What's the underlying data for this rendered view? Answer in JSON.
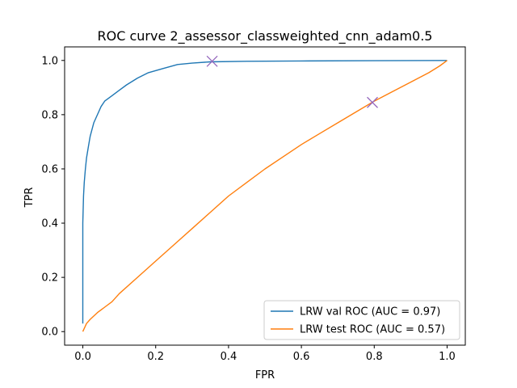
{
  "chart_data": {
    "type": "line",
    "title": "ROC curve 2_assessor_classweighted_cnn_adam0.5",
    "xlabel": "FPR",
    "ylabel": "TPR",
    "xlim": [
      -0.05,
      1.05
    ],
    "ylim": [
      -0.05,
      1.05
    ],
    "x_ticks": [
      "0.0",
      "0.2",
      "0.4",
      "0.6",
      "0.8",
      "1.0"
    ],
    "y_ticks": [
      "0.0",
      "0.2",
      "0.4",
      "0.6",
      "0.8",
      "1.0"
    ],
    "grid": false,
    "legend_position": "lower right",
    "series": [
      {
        "name": "LRW val ROC (AUC = 0.97)",
        "color": "#1f77b4",
        "x": [
          0.0,
          0.0,
          0.002,
          0.004,
          0.007,
          0.01,
          0.015,
          0.02,
          0.03,
          0.04,
          0.05,
          0.06,
          0.08,
          0.1,
          0.12,
          0.15,
          0.18,
          0.22,
          0.26,
          0.3,
          0.35,
          0.45,
          0.6,
          0.8,
          1.0
        ],
        "y": [
          0.03,
          0.4,
          0.5,
          0.55,
          0.6,
          0.64,
          0.68,
          0.72,
          0.77,
          0.8,
          0.83,
          0.85,
          0.87,
          0.89,
          0.91,
          0.935,
          0.955,
          0.97,
          0.985,
          0.99,
          0.995,
          0.997,
          0.998,
          0.999,
          1.0
        ]
      },
      {
        "name": "LRW test ROC (AUC = 0.57)",
        "color": "#ff7f0e",
        "x": [
          0.0,
          0.01,
          0.02,
          0.04,
          0.06,
          0.08,
          0.1,
          0.15,
          0.2,
          0.25,
          0.3,
          0.35,
          0.4,
          0.45,
          0.5,
          0.55,
          0.6,
          0.65,
          0.7,
          0.75,
          0.8,
          0.85,
          0.9,
          0.95,
          0.98,
          1.0
        ],
        "y": [
          0.0,
          0.03,
          0.045,
          0.07,
          0.09,
          0.11,
          0.14,
          0.2,
          0.26,
          0.32,
          0.38,
          0.44,
          0.5,
          0.55,
          0.6,
          0.645,
          0.69,
          0.73,
          0.77,
          0.81,
          0.85,
          0.885,
          0.92,
          0.955,
          0.98,
          1.0
        ]
      }
    ],
    "markers": [
      {
        "x": 0.355,
        "y": 0.997,
        "symbol": "x",
        "color": "#9467bd"
      },
      {
        "x": 0.795,
        "y": 0.845,
        "symbol": "x",
        "color": "#9467bd"
      }
    ]
  }
}
